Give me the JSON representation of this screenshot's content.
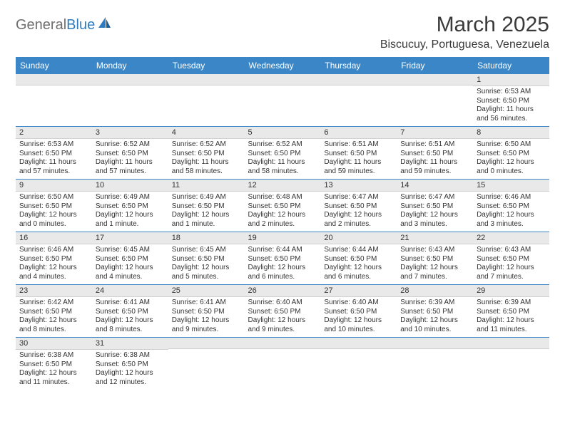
{
  "header": {
    "logo_gray": "General",
    "logo_blue": "Blue",
    "month_title": "March 2025",
    "location": "Biscucuy, Portuguesa, Venezuela"
  },
  "days_of_week": [
    "Sunday",
    "Monday",
    "Tuesday",
    "Wednesday",
    "Thursday",
    "Friday",
    "Saturday"
  ],
  "colors": {
    "header_bg": "#3b86c6",
    "header_text": "#ffffff",
    "daynum_bg": "#e9e9e9",
    "border": "#3b86c6",
    "logo_gray": "#6e6e6e",
    "logo_blue": "#2f7bbf"
  },
  "weeks": [
    [
      {
        "num": "",
        "lines": []
      },
      {
        "num": "",
        "lines": []
      },
      {
        "num": "",
        "lines": []
      },
      {
        "num": "",
        "lines": []
      },
      {
        "num": "",
        "lines": []
      },
      {
        "num": "",
        "lines": []
      },
      {
        "num": "1",
        "lines": [
          "Sunrise: 6:53 AM",
          "Sunset: 6:50 PM",
          "Daylight: 11 hours and 56 minutes."
        ]
      }
    ],
    [
      {
        "num": "2",
        "lines": [
          "Sunrise: 6:53 AM",
          "Sunset: 6:50 PM",
          "Daylight: 11 hours and 57 minutes."
        ]
      },
      {
        "num": "3",
        "lines": [
          "Sunrise: 6:52 AM",
          "Sunset: 6:50 PM",
          "Daylight: 11 hours and 57 minutes."
        ]
      },
      {
        "num": "4",
        "lines": [
          "Sunrise: 6:52 AM",
          "Sunset: 6:50 PM",
          "Daylight: 11 hours and 58 minutes."
        ]
      },
      {
        "num": "5",
        "lines": [
          "Sunrise: 6:52 AM",
          "Sunset: 6:50 PM",
          "Daylight: 11 hours and 58 minutes."
        ]
      },
      {
        "num": "6",
        "lines": [
          "Sunrise: 6:51 AM",
          "Sunset: 6:50 PM",
          "Daylight: 11 hours and 59 minutes."
        ]
      },
      {
        "num": "7",
        "lines": [
          "Sunrise: 6:51 AM",
          "Sunset: 6:50 PM",
          "Daylight: 11 hours and 59 minutes."
        ]
      },
      {
        "num": "8",
        "lines": [
          "Sunrise: 6:50 AM",
          "Sunset: 6:50 PM",
          "Daylight: 12 hours and 0 minutes."
        ]
      }
    ],
    [
      {
        "num": "9",
        "lines": [
          "Sunrise: 6:50 AM",
          "Sunset: 6:50 PM",
          "Daylight: 12 hours and 0 minutes."
        ]
      },
      {
        "num": "10",
        "lines": [
          "Sunrise: 6:49 AM",
          "Sunset: 6:50 PM",
          "Daylight: 12 hours and 1 minute."
        ]
      },
      {
        "num": "11",
        "lines": [
          "Sunrise: 6:49 AM",
          "Sunset: 6:50 PM",
          "Daylight: 12 hours and 1 minute."
        ]
      },
      {
        "num": "12",
        "lines": [
          "Sunrise: 6:48 AM",
          "Sunset: 6:50 PM",
          "Daylight: 12 hours and 2 minutes."
        ]
      },
      {
        "num": "13",
        "lines": [
          "Sunrise: 6:47 AM",
          "Sunset: 6:50 PM",
          "Daylight: 12 hours and 2 minutes."
        ]
      },
      {
        "num": "14",
        "lines": [
          "Sunrise: 6:47 AM",
          "Sunset: 6:50 PM",
          "Daylight: 12 hours and 3 minutes."
        ]
      },
      {
        "num": "15",
        "lines": [
          "Sunrise: 6:46 AM",
          "Sunset: 6:50 PM",
          "Daylight: 12 hours and 3 minutes."
        ]
      }
    ],
    [
      {
        "num": "16",
        "lines": [
          "Sunrise: 6:46 AM",
          "Sunset: 6:50 PM",
          "Daylight: 12 hours and 4 minutes."
        ]
      },
      {
        "num": "17",
        "lines": [
          "Sunrise: 6:45 AM",
          "Sunset: 6:50 PM",
          "Daylight: 12 hours and 4 minutes."
        ]
      },
      {
        "num": "18",
        "lines": [
          "Sunrise: 6:45 AM",
          "Sunset: 6:50 PM",
          "Daylight: 12 hours and 5 minutes."
        ]
      },
      {
        "num": "19",
        "lines": [
          "Sunrise: 6:44 AM",
          "Sunset: 6:50 PM",
          "Daylight: 12 hours and 6 minutes."
        ]
      },
      {
        "num": "20",
        "lines": [
          "Sunrise: 6:44 AM",
          "Sunset: 6:50 PM",
          "Daylight: 12 hours and 6 minutes."
        ]
      },
      {
        "num": "21",
        "lines": [
          "Sunrise: 6:43 AM",
          "Sunset: 6:50 PM",
          "Daylight: 12 hours and 7 minutes."
        ]
      },
      {
        "num": "22",
        "lines": [
          "Sunrise: 6:43 AM",
          "Sunset: 6:50 PM",
          "Daylight: 12 hours and 7 minutes."
        ]
      }
    ],
    [
      {
        "num": "23",
        "lines": [
          "Sunrise: 6:42 AM",
          "Sunset: 6:50 PM",
          "Daylight: 12 hours and 8 minutes."
        ]
      },
      {
        "num": "24",
        "lines": [
          "Sunrise: 6:41 AM",
          "Sunset: 6:50 PM",
          "Daylight: 12 hours and 8 minutes."
        ]
      },
      {
        "num": "25",
        "lines": [
          "Sunrise: 6:41 AM",
          "Sunset: 6:50 PM",
          "Daylight: 12 hours and 9 minutes."
        ]
      },
      {
        "num": "26",
        "lines": [
          "Sunrise: 6:40 AM",
          "Sunset: 6:50 PM",
          "Daylight: 12 hours and 9 minutes."
        ]
      },
      {
        "num": "27",
        "lines": [
          "Sunrise: 6:40 AM",
          "Sunset: 6:50 PM",
          "Daylight: 12 hours and 10 minutes."
        ]
      },
      {
        "num": "28",
        "lines": [
          "Sunrise: 6:39 AM",
          "Sunset: 6:50 PM",
          "Daylight: 12 hours and 10 minutes."
        ]
      },
      {
        "num": "29",
        "lines": [
          "Sunrise: 6:39 AM",
          "Sunset: 6:50 PM",
          "Daylight: 12 hours and 11 minutes."
        ]
      }
    ],
    [
      {
        "num": "30",
        "lines": [
          "Sunrise: 6:38 AM",
          "Sunset: 6:50 PM",
          "Daylight: 12 hours and 11 minutes."
        ]
      },
      {
        "num": "31",
        "lines": [
          "Sunrise: 6:38 AM",
          "Sunset: 6:50 PM",
          "Daylight: 12 hours and 12 minutes."
        ]
      },
      {
        "num": "",
        "lines": []
      },
      {
        "num": "",
        "lines": []
      },
      {
        "num": "",
        "lines": []
      },
      {
        "num": "",
        "lines": []
      },
      {
        "num": "",
        "lines": []
      }
    ]
  ]
}
